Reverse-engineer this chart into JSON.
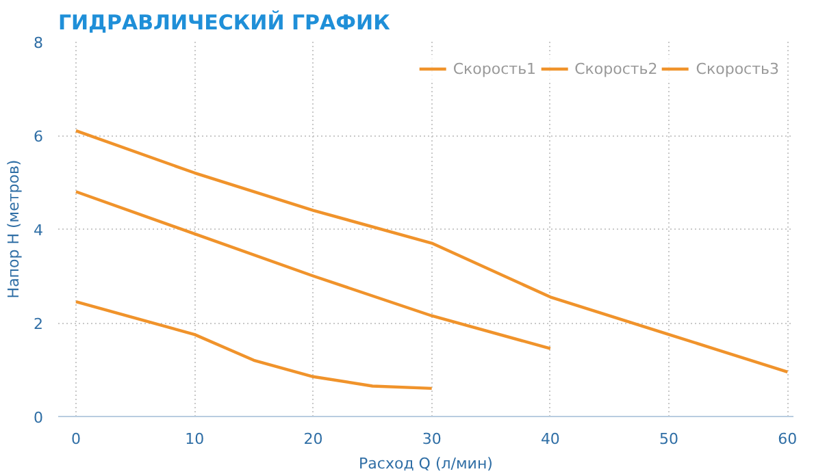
{
  "chart_data": {
    "type": "line",
    "title": "ГИДРАВЛИЧЕСКИЙ ГРАФИК",
    "xlabel": "Расход Q (л/мин)",
    "ylabel": "Напор Н (метров)",
    "series": [
      {
        "name": "Скорость1",
        "color": "#f0932b",
        "x": [
          0,
          5,
          10,
          15,
          20,
          25,
          30
        ],
        "values": [
          2.45,
          2.1,
          1.75,
          1.2,
          0.85,
          0.65,
          0.6
        ]
      },
      {
        "name": "Скорость2",
        "color": "#f0932b",
        "x": [
          0,
          10,
          20,
          30,
          40
        ],
        "values": [
          4.8,
          3.9,
          3.0,
          2.15,
          1.45
        ]
      },
      {
        "name": "Скорость3",
        "color": "#f0932b",
        "x": [
          0,
          10,
          20,
          30,
          40,
          50,
          60
        ],
        "values": [
          6.1,
          5.2,
          4.4,
          3.7,
          2.55,
          1.75,
          0.95
        ]
      }
    ],
    "xlim": [
      0,
      60
    ],
    "xticks": [
      0,
      10,
      20,
      30,
      40,
      50,
      60
    ],
    "ylim": [
      0,
      8
    ],
    "yticks": [
      0,
      2,
      4,
      6,
      8
    ],
    "grid": true,
    "legend": "top right",
    "line_style": "solid",
    "marker": "none"
  }
}
